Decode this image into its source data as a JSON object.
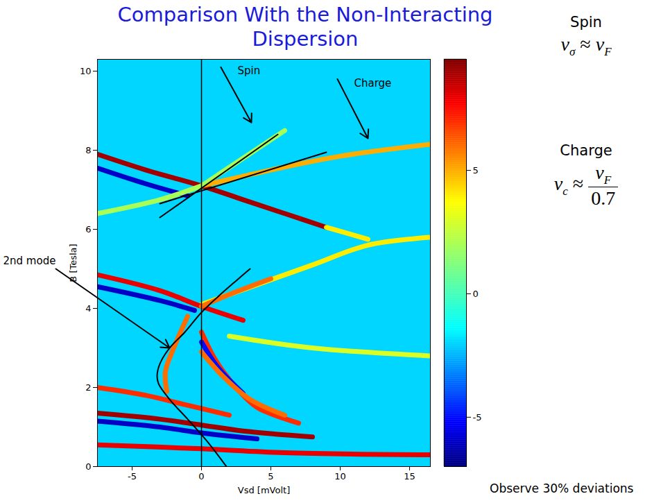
{
  "chart_data": {
    "type": "heatmap",
    "title": "Comparison With the Non-Interacting Dispersion",
    "x_label": "Vsd [mVolt]",
    "y_label": "B [Tesla]",
    "xlim": [
      -7.5,
      16.5
    ],
    "xticks": [
      -5,
      0,
      5,
      10,
      15
    ],
    "ylim": [
      0,
      10.3
    ],
    "yticks": [
      0,
      2,
      4,
      6,
      8,
      10
    ],
    "background_value": -2,
    "bands": [
      {
        "value": 9,
        "points": [
          [
            -7.5,
            7.9
          ],
          [
            -4,
            7.5
          ],
          [
            0,
            7.1
          ],
          [
            3,
            6.75
          ],
          [
            6,
            6.4
          ],
          [
            9,
            6.05
          ]
        ]
      },
      {
        "value": -6,
        "points": [
          [
            -7.5,
            7.55
          ],
          [
            -4,
            7.15
          ],
          [
            -1,
            6.85
          ]
        ]
      },
      {
        "value": 2,
        "points": [
          [
            -7.5,
            6.4
          ],
          [
            -3,
            6.75
          ],
          [
            0,
            7.1
          ]
        ]
      },
      {
        "value": 5,
        "points": [
          [
            0,
            7.1
          ],
          [
            5,
            7.5
          ],
          [
            10,
            7.85
          ],
          [
            16.5,
            8.15
          ]
        ]
      },
      {
        "value": 2,
        "points": [
          [
            0,
            7.1
          ],
          [
            3,
            7.8
          ],
          [
            6,
            8.5
          ]
        ]
      },
      {
        "value": 4,
        "points": [
          [
            9,
            6.05
          ],
          [
            12,
            5.75
          ]
        ]
      },
      {
        "value": 4,
        "points": [
          [
            0,
            4.1
          ],
          [
            4,
            4.6
          ],
          [
            8,
            5.1
          ],
          [
            12,
            5.6
          ],
          [
            16.5,
            5.8
          ]
        ]
      },
      {
        "value": 8,
        "points": [
          [
            -7.5,
            4.85
          ],
          [
            -3,
            4.45
          ],
          [
            0,
            4.05
          ],
          [
            3,
            3.7
          ]
        ]
      },
      {
        "value": -6,
        "points": [
          [
            -7.5,
            4.55
          ],
          [
            -3,
            4.2
          ],
          [
            -0.5,
            3.95
          ]
        ]
      },
      {
        "value": 6,
        "points": [
          [
            0,
            4.05
          ],
          [
            2,
            4.35
          ],
          [
            5,
            4.75
          ]
        ]
      },
      {
        "value": 3,
        "points": [
          [
            2,
            3.3
          ],
          [
            8,
            3.0
          ],
          [
            16.5,
            2.8
          ]
        ]
      },
      {
        "value": 7,
        "points": [
          [
            0,
            3.4
          ],
          [
            1,
            2.7
          ],
          [
            2.5,
            2.0
          ],
          [
            4,
            1.5
          ],
          [
            7,
            1.1
          ]
        ]
      },
      {
        "value": -5,
        "points": [
          [
            0,
            3.15
          ],
          [
            1.2,
            2.5
          ],
          [
            3,
            1.85
          ]
        ]
      },
      {
        "value": 6,
        "points": [
          [
            0,
            2.9
          ],
          [
            1.5,
            2.3
          ],
          [
            3.5,
            1.7
          ],
          [
            6,
            1.3
          ]
        ]
      },
      {
        "value": 6,
        "points": [
          [
            -1,
            3.8
          ],
          [
            -2,
            3.0
          ],
          [
            -2.6,
            2.4
          ],
          [
            -2.5,
            1.9
          ]
        ]
      },
      {
        "value": 7,
        "points": [
          [
            -7.5,
            2.0
          ],
          [
            -4,
            1.8
          ],
          [
            -1,
            1.55
          ],
          [
            2,
            1.3
          ]
        ]
      },
      {
        "value": 9,
        "points": [
          [
            -7.5,
            1.35
          ],
          [
            -3,
            1.2
          ],
          [
            0,
            1.05
          ],
          [
            3,
            0.9
          ],
          [
            8,
            0.75
          ]
        ]
      },
      {
        "value": -6,
        "points": [
          [
            -7.5,
            1.15
          ],
          [
            -3,
            1.0
          ],
          [
            0,
            0.85
          ],
          [
            4,
            0.7
          ]
        ]
      },
      {
        "value": 8,
        "points": [
          [
            -7.5,
            0.55
          ],
          [
            0,
            0.45
          ],
          [
            6,
            0.35
          ],
          [
            16.5,
            0.3
          ]
        ]
      }
    ],
    "colorbar": {
      "range": [
        -7,
        9.5
      ],
      "ticks": [
        -5,
        0,
        5
      ]
    },
    "vline": 0,
    "fit_lines": [
      {
        "points": [
          [
            -3,
            6.3
          ],
          [
            5.5,
            8.4
          ]
        ],
        "color": "#000000"
      },
      {
        "points": [
          [
            -3,
            6.65
          ],
          [
            9,
            7.95
          ]
        ],
        "color": "#000000"
      },
      {
        "points": [
          [
            1.8,
            0
          ],
          [
            0.5,
            0.6
          ],
          [
            -1,
            1.2
          ],
          [
            -2.3,
            1.7
          ],
          [
            -3.1,
            2.1
          ],
          [
            -3.2,
            2.3
          ],
          [
            -3.0,
            2.6
          ],
          [
            -2.3,
            3.0
          ],
          [
            -1.2,
            3.4
          ],
          [
            0,
            3.9
          ],
          [
            1.2,
            4.3
          ],
          [
            2.5,
            4.7
          ],
          [
            3.5,
            5.0
          ]
        ],
        "color": "#000000"
      }
    ],
    "annotations": [
      {
        "text": "Spin",
        "text_xy": [
          2.6,
          10.0
        ],
        "arrow_from": [
          1.4,
          10.1
        ],
        "arrow_to": [
          3.6,
          8.7
        ]
      },
      {
        "text": "Charge",
        "text_xy": [
          11.0,
          9.7
        ],
        "arrow_from": [
          9.8,
          9.8
        ],
        "arrow_to": [
          12.0,
          8.3
        ]
      },
      {
        "text": "2nd mode",
        "text_xy": [
          -14.3,
          5.2
        ],
        "arrow_from": [
          -10.5,
          5.0
        ],
        "arrow_to": [
          -2.3,
          3.0
        ]
      }
    ],
    "side_notes": [
      {
        "title": "Spin",
        "lhs": [
          "v",
          "σ"
        ],
        "relation": "≈",
        "rhs": [
          "v",
          "F"
        ]
      },
      {
        "title": "Charge",
        "lhs": [
          "v",
          "c"
        ],
        "relation": "≈",
        "rhs": [
          "v",
          "F"
        ],
        "divisor": 0.7
      }
    ],
    "footnote": "Observe 30% deviations"
  }
}
